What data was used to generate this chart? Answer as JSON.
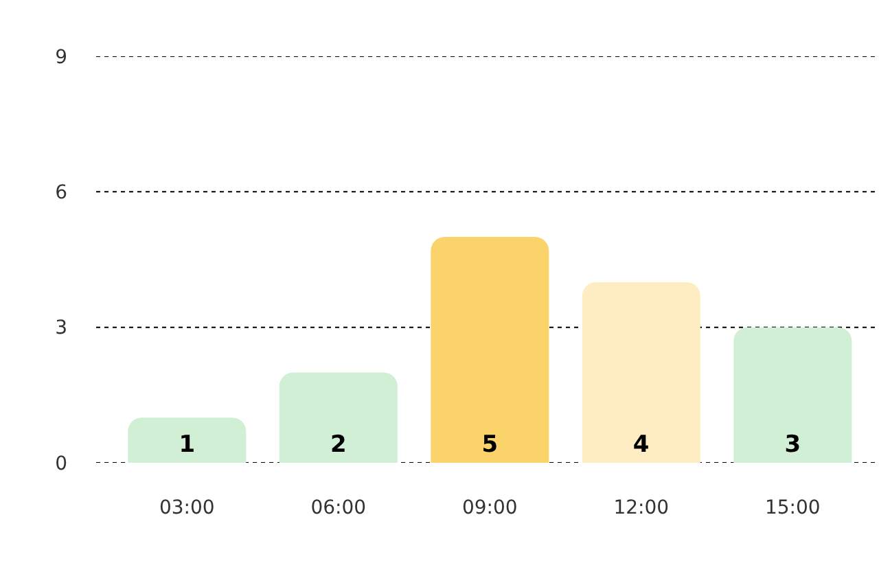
{
  "chart_data": {
    "type": "bar",
    "categories": [
      "03:00",
      "06:00",
      "09:00",
      "12:00",
      "15:00"
    ],
    "values": [
      1,
      2,
      5,
      4,
      3
    ],
    "colors": [
      "#d0efd5",
      "#d0efd5",
      "#fad46b",
      "#feecc3",
      "#d0efd5"
    ],
    "ylim": [
      0,
      9
    ],
    "yticks": [
      0,
      3,
      6,
      9
    ],
    "grid": "y",
    "data_labels": true
  }
}
